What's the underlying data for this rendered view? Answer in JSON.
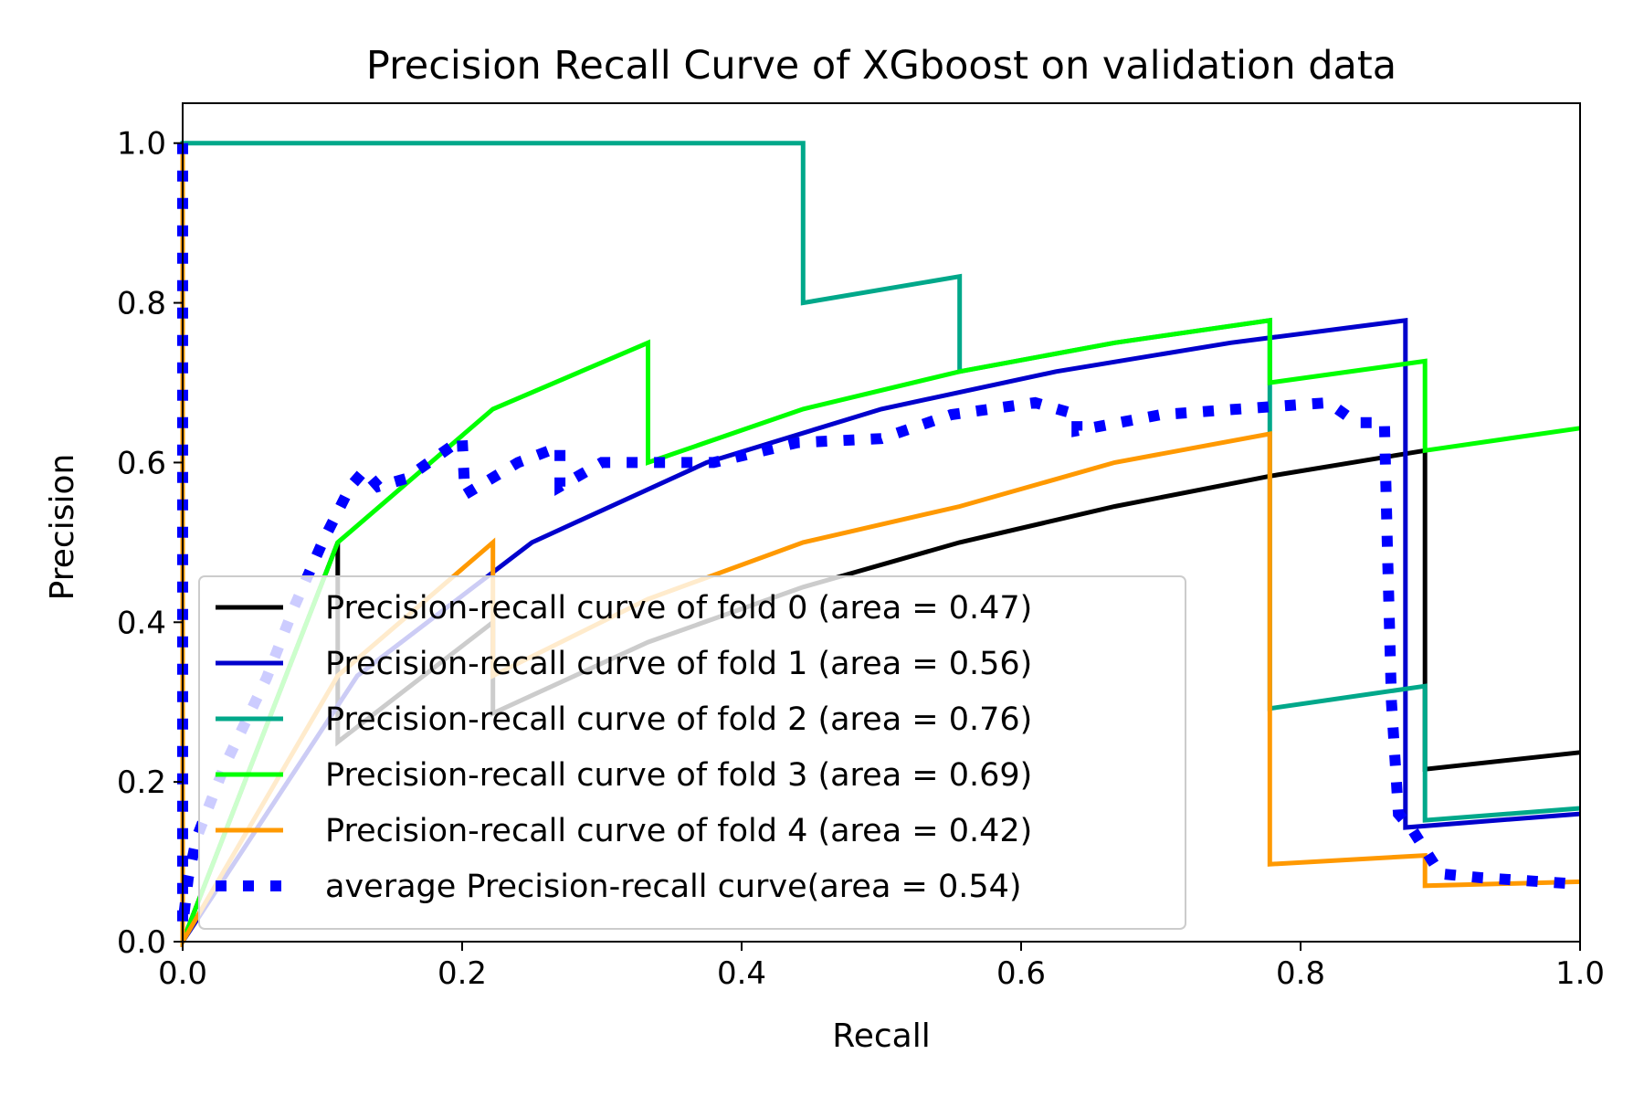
{
  "chart_data": {
    "type": "line",
    "title": "Precision Recall Curve of XGboost on validation data",
    "xlabel": "Recall",
    "ylabel": "Precision",
    "xlim": [
      0.0,
      1.0
    ],
    "ylim": [
      0.0,
      1.05
    ],
    "x_ticks": [
      0.0,
      0.2,
      0.4,
      0.6,
      0.8,
      1.0
    ],
    "x_tick_labels": [
      "0.0",
      "0.2",
      "0.4",
      "0.6",
      "0.8",
      "1.0"
    ],
    "y_ticks": [
      0.0,
      0.2,
      0.4,
      0.6,
      0.8,
      1.0
    ],
    "y_tick_labels": [
      "0.0",
      "0.2",
      "0.4",
      "0.6",
      "0.8",
      "1.0"
    ],
    "grid": false,
    "legend_position": "lower-left",
    "series": [
      {
        "name": "Precision-recall curve of fold 0 (area = 0.47)",
        "color": "#000000",
        "style": "solid",
        "points": [
          [
            0,
            1.0
          ],
          [
            0,
            0.0
          ],
          [
            0.111,
            0.5
          ],
          [
            0.111,
            0.25
          ],
          [
            0.222,
            0.4
          ],
          [
            0.222,
            0.286
          ],
          [
            0.333,
            0.375
          ],
          [
            0.444,
            0.444
          ],
          [
            0.556,
            0.5
          ],
          [
            0.667,
            0.545
          ],
          [
            0.778,
            0.583
          ],
          [
            0.889,
            0.615
          ],
          [
            0.889,
            0.216
          ],
          [
            1.0,
            0.237
          ]
        ]
      },
      {
        "name": "Precision-recall curve of fold 1 (area = 0.56)",
        "color": "#0000cc",
        "style": "solid",
        "points": [
          [
            0,
            1.0
          ],
          [
            0,
            0.0
          ],
          [
            0.125,
            0.333
          ],
          [
            0.25,
            0.5
          ],
          [
            0.375,
            0.6
          ],
          [
            0.5,
            0.667
          ],
          [
            0.625,
            0.714
          ],
          [
            0.75,
            0.75
          ],
          [
            0.875,
            0.778
          ],
          [
            0.875,
            0.143
          ],
          [
            1.0,
            0.16
          ]
        ]
      },
      {
        "name": "Precision-recall curve of fold 2 (area = 0.76)",
        "color": "#00a88a",
        "style": "solid",
        "points": [
          [
            0,
            0.0
          ],
          [
            0,
            1.0
          ],
          [
            0.444,
            1.0
          ],
          [
            0.444,
            0.8
          ],
          [
            0.556,
            0.833
          ],
          [
            0.556,
            0.714
          ],
          [
            0.667,
            0.75
          ],
          [
            0.778,
            0.778
          ],
          [
            0.778,
            0.292
          ],
          [
            0.889,
            0.32
          ],
          [
            0.889,
            0.152
          ],
          [
            1.0,
            0.167
          ]
        ]
      },
      {
        "name": "Precision-recall curve of fold 3 (area = 0.69)",
        "color": "#00ff00",
        "style": "solid",
        "points": [
          [
            0,
            1.0
          ],
          [
            0,
            0.0
          ],
          [
            0.111,
            0.5
          ],
          [
            0.222,
            0.667
          ],
          [
            0.333,
            0.75
          ],
          [
            0.333,
            0.6
          ],
          [
            0.444,
            0.667
          ],
          [
            0.556,
            0.714
          ],
          [
            0.667,
            0.75
          ],
          [
            0.778,
            0.778
          ],
          [
            0.778,
            0.7
          ],
          [
            0.889,
            0.727
          ],
          [
            0.889,
            0.615
          ],
          [
            1.0,
            0.643
          ]
        ]
      },
      {
        "name": "Precision-recall curve of fold 4 (area = 0.42)",
        "color": "#ff9900",
        "style": "solid",
        "points": [
          [
            0,
            1.0
          ],
          [
            0,
            0.0
          ],
          [
            0.111,
            0.333
          ],
          [
            0.222,
            0.5
          ],
          [
            0.222,
            0.333
          ],
          [
            0.333,
            0.429
          ],
          [
            0.444,
            0.5
          ],
          [
            0.556,
            0.545
          ],
          [
            0.667,
            0.6
          ],
          [
            0.778,
            0.636
          ],
          [
            0.778,
            0.097
          ],
          [
            0.889,
            0.108
          ],
          [
            0.889,
            0.07
          ],
          [
            1.0,
            0.075
          ]
        ]
      },
      {
        "name": "average Precision-recall curve(area = 0.54)",
        "color": "#0000ff",
        "style": "dotted",
        "points": [
          [
            0,
            1.0
          ],
          [
            0.0,
            0.02
          ],
          [
            0.004,
            0.08
          ],
          [
            0.01,
            0.13
          ],
          [
            0.03,
            0.22
          ],
          [
            0.06,
            0.33
          ],
          [
            0.08,
            0.42
          ],
          [
            0.1,
            0.5
          ],
          [
            0.12,
            0.57
          ],
          [
            0.13,
            0.59
          ],
          [
            0.14,
            0.57
          ],
          [
            0.16,
            0.58
          ],
          [
            0.2,
            0.63
          ],
          [
            0.202,
            0.56
          ],
          [
            0.24,
            0.6
          ],
          [
            0.27,
            0.62
          ],
          [
            0.27,
            0.57
          ],
          [
            0.3,
            0.6
          ],
          [
            0.34,
            0.6
          ],
          [
            0.38,
            0.6
          ],
          [
            0.44,
            0.625
          ],
          [
            0.5,
            0.63
          ],
          [
            0.55,
            0.66
          ],
          [
            0.61,
            0.675
          ],
          [
            0.64,
            0.66
          ],
          [
            0.64,
            0.64
          ],
          [
            0.7,
            0.66
          ],
          [
            0.74,
            0.665
          ],
          [
            0.78,
            0.67
          ],
          [
            0.82,
            0.675
          ],
          [
            0.84,
            0.65
          ],
          [
            0.86,
            0.65
          ],
          [
            0.862,
            0.5
          ],
          [
            0.865,
            0.3
          ],
          [
            0.87,
            0.16
          ],
          [
            0.88,
            0.14
          ],
          [
            0.9,
            0.085
          ],
          [
            0.93,
            0.08
          ],
          [
            1.0,
            0.072
          ]
        ]
      }
    ]
  }
}
